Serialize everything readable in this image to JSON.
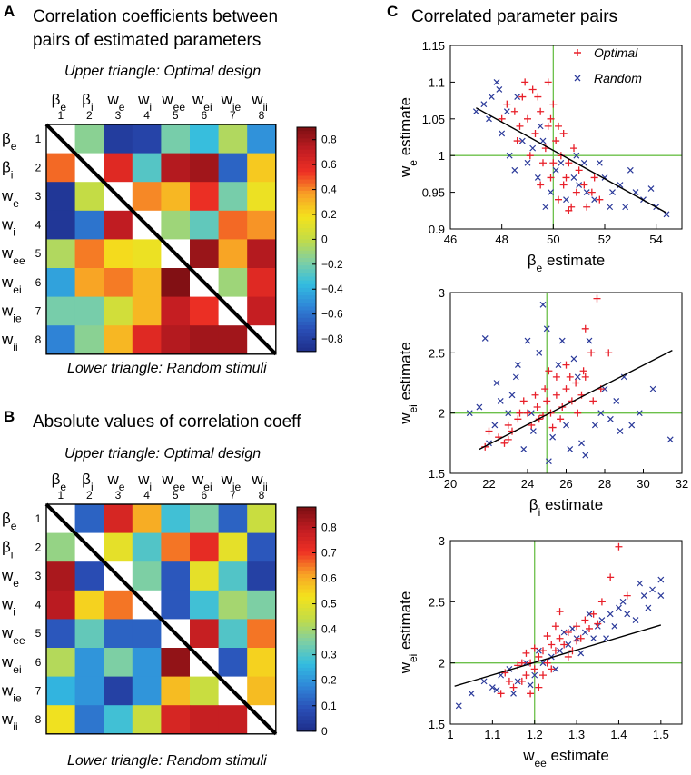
{
  "colormap": [
    "#1e2e8a",
    "#2a4fb7",
    "#2f86d8",
    "#33bde0",
    "#7fcfa3",
    "#c4dc45",
    "#f4e21c",
    "#f8a126",
    "#ee3024",
    "#c01c22",
    "#7a0f12"
  ],
  "panels": {
    "A": {
      "letter": "A",
      "title_line1": "Correlation coefficients between",
      "title_line2": "pairs of estimated parameters",
      "upper_caption": "Upper triangle: Optimal design",
      "lower_caption": "Lower triangle: Random stimuli"
    },
    "B": {
      "letter": "B",
      "title": "Absolute values of correlation coeff",
      "upper_caption": "Upper triangle: Optimal design",
      "lower_caption": "Lower triangle: Random stimuli"
    },
    "C": {
      "letter": "C",
      "title": "Correlated parameter pairs"
    }
  },
  "params": [
    {
      "base": "β",
      "sub": "e",
      "num": "1"
    },
    {
      "base": "β",
      "sub": "i",
      "num": "2"
    },
    {
      "base": "w",
      "sub": "e",
      "num": "3"
    },
    {
      "base": "w",
      "sub": "i",
      "num": "4"
    },
    {
      "base": "w",
      "sub": "ee",
      "num": "5"
    },
    {
      "base": "w",
      "sub": "ei",
      "num": "6"
    },
    {
      "base": "w",
      "sub": "ie",
      "num": "7"
    },
    {
      "base": "w",
      "sub": "ii",
      "num": "8"
    }
  ],
  "legend": {
    "optimal": "Optimal",
    "random": "Random"
  },
  "chart_data": [
    {
      "type": "heatmap",
      "id": "A",
      "vmin": -0.9,
      "vmax": 0.9,
      "colorbar_ticks": [
        "0.8",
        "0.6",
        "0.4",
        "0.2",
        "0",
        "−0.2",
        "−0.4",
        "−0.6",
        "−0.8"
      ],
      "colorbar_tick_values": [
        0.8,
        0.6,
        0.4,
        0.2,
        0,
        -0.2,
        -0.4,
        -0.6,
        -0.8
      ],
      "matrix": [
        [
          null,
          -0.15,
          -0.82,
          -0.78,
          -0.2,
          -0.35,
          -0.05,
          -0.5
        ],
        [
          0.45,
          null,
          0.6,
          -0.28,
          0.75,
          0.8,
          -0.65,
          0.25
        ],
        [
          -0.85,
          0.0,
          null,
          0.4,
          0.3,
          0.55,
          -0.2,
          0.15
        ],
        [
          -0.85,
          -0.6,
          0.72,
          null,
          -0.1,
          -0.25,
          0.45,
          0.38
        ],
        [
          -0.05,
          0.42,
          0.2,
          0.15,
          null,
          0.82,
          0.35,
          0.75
        ],
        [
          -0.45,
          0.35,
          0.42,
          0.3,
          0.88,
          null,
          -0.1,
          0.6
        ],
        [
          -0.2,
          -0.2,
          0.05,
          0.3,
          0.7,
          0.55,
          null,
          0.7
        ],
        [
          -0.55,
          -0.15,
          0.3,
          0.6,
          0.75,
          0.8,
          0.8,
          null
        ]
      ]
    },
    {
      "type": "heatmap",
      "id": "B",
      "vmin": 0.0,
      "vmax": 0.88,
      "colorbar_ticks": [
        "0.8",
        "0.7",
        "0.6",
        "0.5",
        "0.4",
        "0.3",
        "0.2",
        "0.1",
        "0"
      ],
      "colorbar_tick_values": [
        0.8,
        0.7,
        0.6,
        0.5,
        0.4,
        0.3,
        0.2,
        0.1,
        0.0
      ],
      "matrix": [
        [
          null,
          0.12,
          0.75,
          0.6,
          0.28,
          0.35,
          0.12,
          0.45
        ],
        [
          0.38,
          null,
          0.5,
          0.3,
          0.65,
          0.72,
          0.5,
          0.1
        ],
        [
          0.82,
          0.08,
          null,
          0.35,
          0.1,
          0.5,
          0.3,
          0.05
        ],
        [
          0.8,
          0.55,
          0.65,
          null,
          0.1,
          0.28,
          0.4,
          0.35
        ],
        [
          0.1,
          0.32,
          0.12,
          0.12,
          null,
          0.78,
          0.3,
          0.65
        ],
        [
          0.42,
          0.2,
          0.35,
          0.2,
          0.85,
          null,
          0.1,
          0.55
        ],
        [
          0.25,
          0.2,
          0.05,
          0.2,
          0.58,
          0.45,
          null,
          0.58
        ],
        [
          0.52,
          0.15,
          0.28,
          0.45,
          0.75,
          0.78,
          0.78,
          null
        ]
      ]
    },
    {
      "type": "scatter",
      "id": "C1",
      "xlabel": {
        "base": "β",
        "sub": "e",
        "rest": " estimate"
      },
      "ylabel": {
        "base": "w",
        "sub": "e",
        "rest": " estimate"
      },
      "xlim": [
        46,
        55
      ],
      "ylim": [
        0.9,
        1.15
      ],
      "xticks": [
        46,
        48,
        50,
        52,
        54
      ],
      "xtick_labels": [
        "46",
        "48",
        "50",
        "52",
        "54"
      ],
      "yticks": [
        0.9,
        0.95,
        1.0,
        1.05,
        1.1,
        1.15
      ],
      "ytick_labels": [
        "0.9",
        "0.95",
        "1",
        "1.05",
        "1.1",
        "1.15"
      ],
      "ref_x": 50,
      "ref_y": 1.0,
      "fit_line": [
        [
          47,
          1.065
        ],
        [
          54.4,
          0.922
        ]
      ],
      "optimal": [
        [
          48.2,
          1.07
        ],
        [
          48.5,
          1.06
        ],
        [
          48.8,
          1.08
        ],
        [
          49.0,
          1.05
        ],
        [
          49.2,
          1.09
        ],
        [
          49.5,
          1.06
        ],
        [
          49.8,
          1.04
        ],
        [
          49.3,
          1.03
        ],
        [
          48.6,
          1.02
        ],
        [
          49.9,
          1.05
        ],
        [
          50.2,
          1.04
        ],
        [
          50.1,
          1.02
        ],
        [
          49.7,
          1.01
        ],
        [
          50.3,
          1.0
        ],
        [
          50.6,
          0.99
        ],
        [
          50.8,
          1.01
        ],
        [
          51.0,
          0.98
        ],
        [
          50.5,
          0.97
        ],
        [
          50.4,
          0.96
        ],
        [
          50.9,
          0.95
        ],
        [
          51.2,
          0.96
        ],
        [
          51.5,
          0.95
        ],
        [
          51.8,
          0.94
        ],
        [
          50.7,
          0.93
        ],
        [
          50.2,
          0.94
        ],
        [
          49.9,
          0.97
        ],
        [
          49.6,
          0.99
        ],
        [
          49.1,
          1.0
        ],
        [
          48.7,
          1.04
        ],
        [
          49.4,
          1.08
        ],
        [
          50.0,
          1.07
        ],
        [
          48.0,
          1.05
        ],
        [
          49.5,
          0.96
        ],
        [
          51.3,
          0.93
        ],
        [
          50.6,
          0.925
        ],
        [
          51.6,
          0.97
        ],
        [
          49.8,
          1.1
        ],
        [
          48.9,
          1.1
        ],
        [
          50.4,
          1.03
        ],
        [
          50.0,
          0.99
        ]
      ],
      "random": [
        [
          47.0,
          1.06
        ],
        [
          47.3,
          1.07
        ],
        [
          47.5,
          1.05
        ],
        [
          47.8,
          1.1
        ],
        [
          48.0,
          1.03
        ],
        [
          48.3,
          1.0
        ],
        [
          48.5,
          0.98
        ],
        [
          48.8,
          1.02
        ],
        [
          49.0,
          0.99
        ],
        [
          49.4,
          0.97
        ],
        [
          49.6,
          1.02
        ],
        [
          49.9,
          0.95
        ],
        [
          50.1,
          0.98
        ],
        [
          50.5,
          0.94
        ],
        [
          50.8,
          0.97
        ],
        [
          51.0,
          0.96
        ],
        [
          51.3,
          0.95
        ],
        [
          51.6,
          0.94
        ],
        [
          52.0,
          0.97
        ],
        [
          52.3,
          0.95
        ],
        [
          52.6,
          0.96
        ],
        [
          52.8,
          0.93
        ],
        [
          53.2,
          0.95
        ],
        [
          53.5,
          0.94
        ],
        [
          54.0,
          0.93
        ],
        [
          54.4,
          0.92
        ],
        [
          53.0,
          0.98
        ],
        [
          51.8,
          0.99
        ],
        [
          49.7,
          0.93
        ],
        [
          48.6,
          1.08
        ],
        [
          47.6,
          1.08
        ],
        [
          50.3,
          0.99
        ],
        [
          49.2,
          1.01
        ],
        [
          51.2,
          0.99
        ],
        [
          52.2,
          0.93
        ],
        [
          49.5,
          1.04
        ],
        [
          48.2,
          1.06
        ],
        [
          50.9,
          1.0
        ],
        [
          53.8,
          0.955
        ],
        [
          47.9,
          1.09
        ]
      ]
    },
    {
      "type": "scatter",
      "id": "C2",
      "xlabel": {
        "base": "β",
        "sub": "i",
        "rest": " estimate"
      },
      "ylabel": {
        "base": "w",
        "sub": "ei",
        "rest": " estimate"
      },
      "xlim": [
        20,
        32
      ],
      "ylim": [
        1.5,
        3.0
      ],
      "xticks": [
        20,
        22,
        24,
        26,
        28,
        30,
        32
      ],
      "xtick_labels": [
        "20",
        "22",
        "24",
        "26",
        "28",
        "30",
        "32"
      ],
      "yticks": [
        1.5,
        2.0,
        2.5,
        3.0
      ],
      "ytick_labels": [
        "1.5",
        "2",
        "2.5",
        "3"
      ],
      "ref_x": 25,
      "ref_y": 2.0,
      "fit_line": [
        [
          21.5,
          1.7
        ],
        [
          31.5,
          2.52
        ]
      ],
      "optimal": [
        [
          22.0,
          1.85
        ],
        [
          22.5,
          1.8
        ],
        [
          23.0,
          1.9
        ],
        [
          23.5,
          1.95
        ],
        [
          24.0,
          2.0
        ],
        [
          24.5,
          2.05
        ],
        [
          24.8,
          1.98
        ],
        [
          25.0,
          2.1
        ],
        [
          25.2,
          2.0
        ],
        [
          25.5,
          2.15
        ],
        [
          25.8,
          2.05
        ],
        [
          26.0,
          2.2
        ],
        [
          26.3,
          2.1
        ],
        [
          26.5,
          2.25
        ],
        [
          26.8,
          2.15
        ],
        [
          27.0,
          2.3
        ],
        [
          27.3,
          2.5
        ],
        [
          27.6,
          2.95
        ],
        [
          27.0,
          2.7
        ],
        [
          26.0,
          2.4
        ],
        [
          25.5,
          2.3
        ],
        [
          24.6,
          1.95
        ],
        [
          24.2,
          1.9
        ],
        [
          23.8,
          2.1
        ],
        [
          23.2,
          1.85
        ],
        [
          22.8,
          1.75
        ],
        [
          25.1,
          2.35
        ],
        [
          24.9,
          2.2
        ],
        [
          25.7,
          1.95
        ],
        [
          26.6,
          2.0
        ],
        [
          27.8,
          2.2
        ],
        [
          28.2,
          2.5
        ],
        [
          21.8,
          1.72
        ],
        [
          23.6,
          2.0
        ],
        [
          26.2,
          2.3
        ],
        [
          24.4,
          2.15
        ],
        [
          25.3,
          1.88
        ],
        [
          27.4,
          2.1
        ],
        [
          26.9,
          2.35
        ],
        [
          23.0,
          1.78
        ]
      ],
      "random": [
        [
          21.0,
          2.0
        ],
        [
          21.5,
          2.05
        ],
        [
          21.8,
          2.62
        ],
        [
          22.0,
          1.75
        ],
        [
          22.3,
          1.9
        ],
        [
          22.6,
          2.1
        ],
        [
          23.0,
          2.0
        ],
        [
          23.4,
          2.3
        ],
        [
          23.8,
          1.7
        ],
        [
          24.0,
          2.6
        ],
        [
          24.3,
          1.85
        ],
        [
          24.6,
          2.5
        ],
        [
          24.8,
          2.9
        ],
        [
          25.0,
          2.7
        ],
        [
          25.3,
          1.8
        ],
        [
          25.6,
          2.4
        ],
        [
          26.0,
          1.9
        ],
        [
          26.4,
          2.45
        ],
        [
          26.8,
          1.75
        ],
        [
          27.2,
          2.6
        ],
        [
          27.5,
          1.9
        ],
        [
          27.8,
          2.0
        ],
        [
          28.0,
          2.2
        ],
        [
          28.3,
          1.95
        ],
        [
          28.6,
          2.1
        ],
        [
          29.0,
          2.3
        ],
        [
          29.4,
          1.9
        ],
        [
          29.8,
          2.0
        ],
        [
          30.5,
          2.2
        ],
        [
          31.4,
          1.78
        ],
        [
          26.2,
          1.7
        ],
        [
          23.5,
          2.4
        ],
        [
          22.4,
          2.25
        ],
        [
          27.0,
          1.65
        ],
        [
          25.8,
          2.6
        ],
        [
          24.2,
          2.0
        ],
        [
          28.8,
          1.85
        ],
        [
          26.6,
          2.3
        ],
        [
          23.2,
          2.15
        ],
        [
          25.1,
          1.6
        ]
      ]
    },
    {
      "type": "scatter",
      "id": "C3",
      "xlabel": {
        "base": "w",
        "sub": "ee",
        "rest": " estimate"
      },
      "ylabel": {
        "base": "w",
        "sub": "ei",
        "rest": " estimate"
      },
      "xlim": [
        1.0,
        1.55
      ],
      "ylim": [
        1.5,
        3.0
      ],
      "xticks": [
        1.0,
        1.1,
        1.2,
        1.3,
        1.4,
        1.5
      ],
      "xtick_labels": [
        "1",
        "1.1",
        "1.2",
        "1.3",
        "1.4",
        "1.5"
      ],
      "yticks": [
        1.5,
        2.0,
        2.5,
        3.0
      ],
      "ytick_labels": [
        "1.5",
        "2",
        "2.5",
        "3"
      ],
      "ref_x": 1.2,
      "ref_y": 2.0,
      "fit_line": [
        [
          1.01,
          1.81
        ],
        [
          1.5,
          2.31
        ]
      ],
      "optimal": [
        [
          1.12,
          1.75
        ],
        [
          1.15,
          1.8
        ],
        [
          1.17,
          1.85
        ],
        [
          1.18,
          1.9
        ],
        [
          1.19,
          2.0
        ],
        [
          1.2,
          1.95
        ],
        [
          1.21,
          2.05
        ],
        [
          1.22,
          2.1
        ],
        [
          1.23,
          2.0
        ],
        [
          1.24,
          2.15
        ],
        [
          1.25,
          2.1
        ],
        [
          1.26,
          2.2
        ],
        [
          1.27,
          2.15
        ],
        [
          1.28,
          2.25
        ],
        [
          1.29,
          2.1
        ],
        [
          1.3,
          2.3
        ],
        [
          1.31,
          2.2
        ],
        [
          1.32,
          2.35
        ],
        [
          1.34,
          2.4
        ],
        [
          1.36,
          2.5
        ],
        [
          1.38,
          2.7
        ],
        [
          1.4,
          2.95
        ],
        [
          1.42,
          2.55
        ],
        [
          1.33,
          2.28
        ],
        [
          1.26,
          2.42
        ],
        [
          1.24,
          1.95
        ],
        [
          1.22,
          1.9
        ],
        [
          1.2,
          2.12
        ],
        [
          1.18,
          2.08
        ],
        [
          1.16,
          1.98
        ],
        [
          1.14,
          1.85
        ],
        [
          1.13,
          1.92
        ],
        [
          1.25,
          2.3
        ],
        [
          1.28,
          2.05
        ],
        [
          1.3,
          2.18
        ],
        [
          1.21,
          1.8
        ],
        [
          1.19,
          1.75
        ],
        [
          1.23,
          2.22
        ],
        [
          1.35,
          2.32
        ],
        [
          1.17,
          2.0
        ]
      ],
      "random": [
        [
          1.02,
          1.65
        ],
        [
          1.05,
          1.75
        ],
        [
          1.08,
          1.85
        ],
        [
          1.1,
          1.8
        ],
        [
          1.12,
          1.9
        ],
        [
          1.14,
          1.95
        ],
        [
          1.16,
          1.85
        ],
        [
          1.18,
          2.0
        ],
        [
          1.2,
          1.9
        ],
        [
          1.22,
          2.0
        ],
        [
          1.24,
          2.05
        ],
        [
          1.26,
          2.1
        ],
        [
          1.28,
          2.15
        ],
        [
          1.3,
          2.2
        ],
        [
          1.32,
          2.25
        ],
        [
          1.34,
          2.2
        ],
        [
          1.36,
          2.35
        ],
        [
          1.38,
          2.4
        ],
        [
          1.4,
          2.45
        ],
        [
          1.42,
          2.4
        ],
        [
          1.44,
          2.35
        ],
        [
          1.46,
          2.55
        ],
        [
          1.48,
          2.6
        ],
        [
          1.5,
          2.68
        ],
        [
          1.5,
          2.55
        ],
        [
          1.45,
          2.65
        ],
        [
          1.35,
          2.3
        ],
        [
          1.27,
          2.25
        ],
        [
          1.15,
          1.75
        ],
        [
          1.25,
          1.95
        ],
        [
          1.31,
          2.08
        ],
        [
          1.39,
          2.3
        ],
        [
          1.47,
          2.45
        ],
        [
          1.29,
          2.28
        ],
        [
          1.21,
          2.1
        ],
        [
          1.33,
          2.4
        ],
        [
          1.41,
          2.5
        ],
        [
          1.11,
          1.78
        ],
        [
          1.19,
          1.82
        ],
        [
          1.37,
          2.2
        ]
      ]
    }
  ]
}
